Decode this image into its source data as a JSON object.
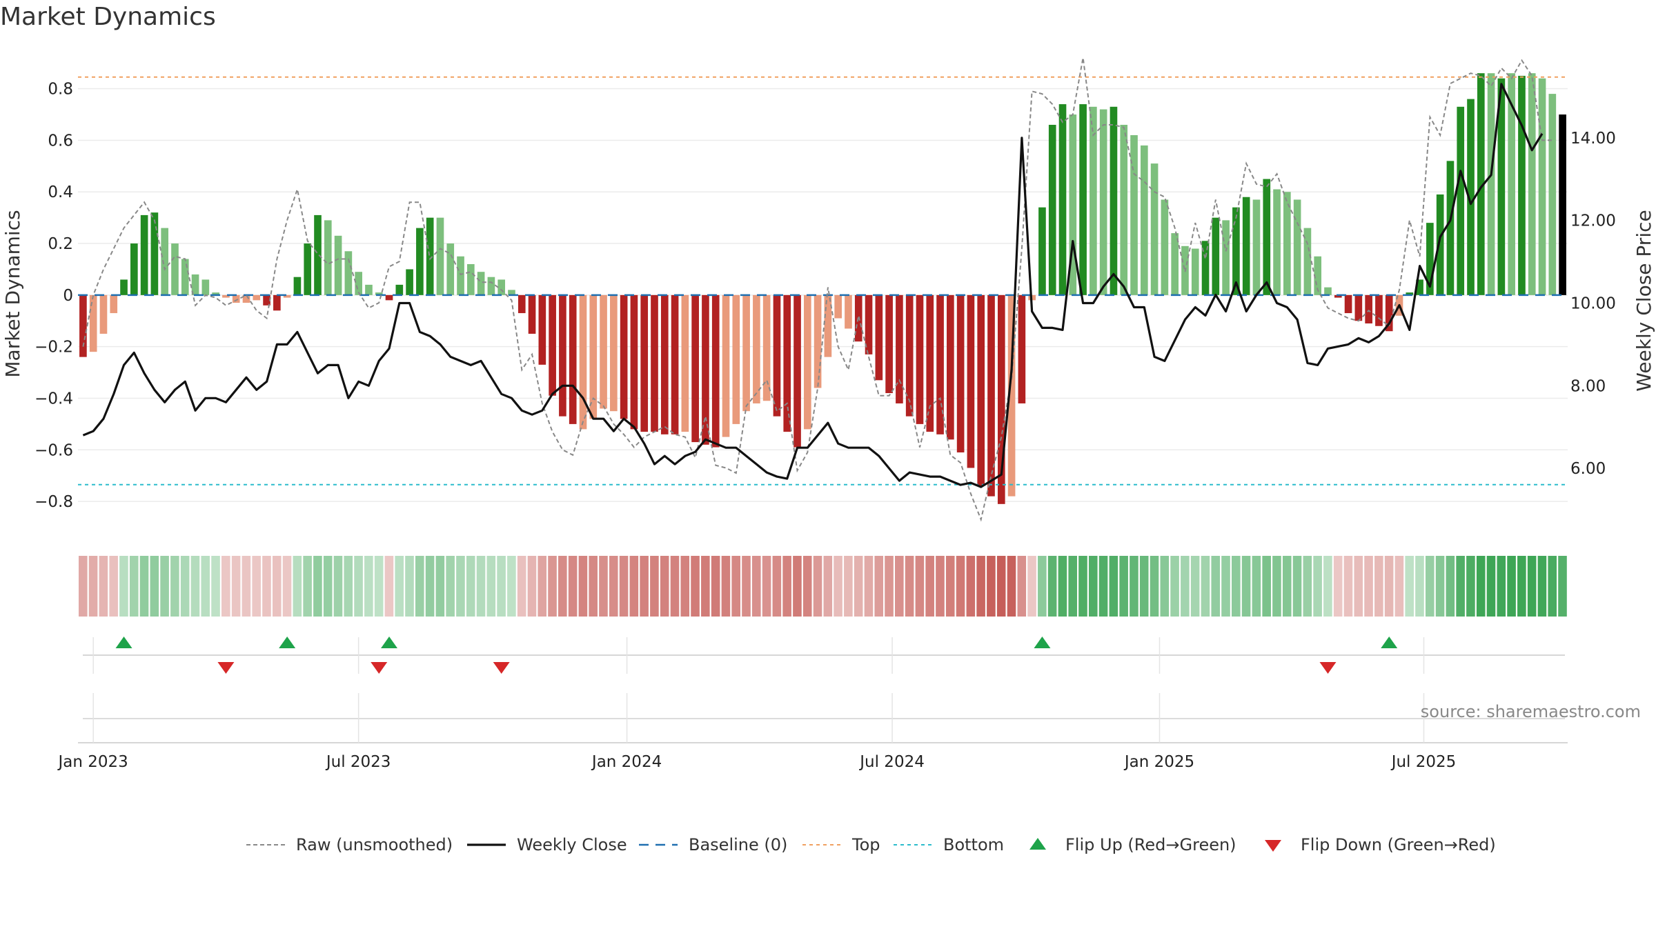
{
  "title": "Market Dynamics",
  "source": "source: sharemaestro.com",
  "chart_data": {
    "type": "bar",
    "title": "Market Dynamics",
    "ylabel": "Market Dynamics",
    "y2label": "Weekly Close Price",
    "ylim": [
      -0.92,
      0.93
    ],
    "y2lim": [
      4.45,
      16.0
    ],
    "y_ticks": [
      -0.8,
      -0.6,
      -0.4,
      -0.2,
      0,
      0.2,
      0.4,
      0.6,
      0.8
    ],
    "y_tick_labels": [
      "−0.8",
      "−0.6",
      "−0.4",
      "−0.2",
      "0",
      "0.2",
      "0.4",
      "0.6",
      "0.8"
    ],
    "y2_ticks": [
      6,
      8,
      10,
      12,
      14
    ],
    "y2_tick_labels": [
      "6.00",
      "8.00",
      "10.00",
      "12.00",
      "14.00"
    ],
    "x_ticks": [
      {
        "label": "Jan 2023",
        "week": 1.5
      },
      {
        "label": "Jul 2023",
        "week": 27.5
      },
      {
        "label": "Jan 2024",
        "week": 53.8
      },
      {
        "label": "Jul 2024",
        "week": 79.8
      },
      {
        "label": "Jan 2025",
        "week": 106.0
      },
      {
        "label": "Jul 2025",
        "week": 131.9
      }
    ],
    "top_line": 0.845,
    "bottom_line": -0.735,
    "baseline": 0,
    "grid": true,
    "legend_position": "bottom",
    "colors": {
      "strong_green": "#228b22",
      "light_green": "#7dbf7d",
      "strong_red": "#b22222",
      "light_red": "#e99a7b",
      "raw_line": "#888888",
      "close_line": "#111111",
      "baseline": "#1f6fb0",
      "top": "#f0a060",
      "bottom": "#2bbccc",
      "flip_up": "#1ea34a",
      "flip_down": "#d62728"
    },
    "series": [
      {
        "name": "Market Dynamics",
        "values": [
          -0.24,
          -0.22,
          -0.15,
          -0.07,
          0.06,
          0.2,
          0.31,
          0.32,
          0.26,
          0.2,
          0.14,
          0.08,
          0.06,
          0.01,
          -0.01,
          -0.03,
          -0.03,
          -0.02,
          -0.04,
          -0.06,
          -0.01,
          0.07,
          0.2,
          0.31,
          0.29,
          0.23,
          0.17,
          0.09,
          0.04,
          0.01,
          -0.02,
          0.04,
          0.1,
          0.26,
          0.3,
          0.3,
          0.2,
          0.15,
          0.12,
          0.09,
          0.07,
          0.06,
          0.02,
          -0.07,
          -0.15,
          -0.27,
          -0.39,
          -0.47,
          -0.5,
          -0.52,
          -0.48,
          -0.44,
          -0.45,
          -0.48,
          -0.52,
          -0.53,
          -0.53,
          -0.54,
          -0.54,
          -0.53,
          -0.57,
          -0.58,
          -0.59,
          -0.55,
          -0.5,
          -0.45,
          -0.42,
          -0.41,
          -0.47,
          -0.53,
          -0.59,
          -0.52,
          -0.36,
          -0.24,
          -0.09,
          -0.13,
          -0.18,
          -0.23,
          -0.33,
          -0.38,
          -0.42,
          -0.47,
          -0.5,
          -0.53,
          -0.54,
          -0.56,
          -0.61,
          -0.67,
          -0.74,
          -0.78,
          -0.81,
          -0.78,
          -0.42,
          -0.02,
          0.34,
          0.66,
          0.74,
          0.7,
          0.74,
          0.73,
          0.72,
          0.73,
          0.66,
          0.62,
          0.58,
          0.51,
          0.37,
          0.24,
          0.19,
          0.18,
          0.21,
          0.3,
          0.29,
          0.34,
          0.38,
          0.37,
          0.45,
          0.41,
          0.4,
          0.37,
          0.26,
          0.15,
          0.03,
          -0.01,
          -0.07,
          -0.1,
          -0.11,
          -0.12,
          -0.14,
          -0.08,
          0.01,
          0.06,
          0.28,
          0.39,
          0.52,
          0.73,
          0.76,
          0.86,
          0.86,
          0.84,
          0.86,
          0.85,
          0.86,
          0.84,
          0.78,
          0.7
        ],
        "colors": [
          "dr",
          "lr",
          "lr",
          "lr",
          "dg",
          "dg",
          "dg",
          "dg",
          "lg",
          "lg",
          "lg",
          "lg",
          "lg",
          "lg",
          "lr",
          "lr",
          "lr",
          "lr",
          "dr",
          "dr",
          "lr",
          "dg",
          "dg",
          "dg",
          "lg",
          "lg",
          "lg",
          "lg",
          "lg",
          "lg",
          "dr",
          "dg",
          "dg",
          "dg",
          "dg",
          "lg",
          "lg",
          "lg",
          "lg",
          "lg",
          "lg",
          "lg",
          "lg",
          "dr",
          "dr",
          "dr",
          "dr",
          "dr",
          "dr",
          "lr",
          "lr",
          "lr",
          "lr",
          "dr",
          "dr",
          "dr",
          "dr",
          "dr",
          "dr",
          "lr",
          "dr",
          "dr",
          "dr",
          "lr",
          "lr",
          "lr",
          "lr",
          "lr",
          "dr",
          "dr",
          "dr",
          "lr",
          "lr",
          "lr",
          "lr",
          "lr",
          "dr",
          "dr",
          "dr",
          "dr",
          "dr",
          "dr",
          "dr",
          "dr",
          "dr",
          "dr",
          "dr",
          "dr",
          "dr",
          "dr",
          "dr",
          "lr",
          "dr",
          "lr",
          "dg",
          "dg",
          "dg",
          "lg",
          "dg",
          "lg",
          "lg",
          "dg",
          "lg",
          "lg",
          "lg",
          "lg",
          "lg",
          "lg",
          "lg",
          "lg",
          "dg",
          "dg",
          "lg",
          "dg",
          "dg",
          "lg",
          "dg",
          "lg",
          "lg",
          "lg",
          "lg",
          "lg",
          "lg",
          "dr",
          "dr",
          "dr",
          "dr",
          "dr",
          "dr",
          "lr",
          "dg",
          "dg",
          "dg",
          "dg",
          "dg",
          "dg",
          "dg",
          "dg",
          "lg",
          "dg",
          "lg",
          "dg",
          "lg",
          "lg",
          "lg"
        ]
      },
      {
        "name": "Raw (unsmoothed)",
        "values": [
          -0.2,
          0.0,
          0.1,
          0.18,
          0.26,
          0.31,
          0.36,
          0.29,
          0.1,
          0.15,
          0.14,
          -0.04,
          0.0,
          -0.01,
          -0.04,
          -0.02,
          0.0,
          -0.06,
          -0.09,
          0.14,
          0.29,
          0.41,
          0.21,
          0.16,
          0.12,
          0.14,
          0.14,
          0.01,
          -0.05,
          -0.03,
          0.11,
          0.13,
          0.36,
          0.36,
          0.14,
          0.18,
          0.16,
          0.08,
          0.09,
          0.05,
          0.05,
          0.02,
          -0.02,
          -0.29,
          -0.23,
          -0.42,
          -0.53,
          -0.6,
          -0.62,
          -0.49,
          -0.4,
          -0.43,
          -0.5,
          -0.54,
          -0.59,
          -0.55,
          -0.53,
          -0.51,
          -0.54,
          -0.55,
          -0.63,
          -0.47,
          -0.66,
          -0.67,
          -0.69,
          -0.43,
          -0.38,
          -0.33,
          -0.45,
          -0.42,
          -0.68,
          -0.61,
          -0.36,
          0.03,
          -0.2,
          -0.29,
          -0.08,
          -0.24,
          -0.39,
          -0.39,
          -0.33,
          -0.41,
          -0.59,
          -0.43,
          -0.4,
          -0.62,
          -0.65,
          -0.77,
          -0.87,
          -0.7,
          -0.55,
          -0.32,
          0.18,
          0.79,
          0.78,
          0.74,
          0.67,
          0.7,
          0.92,
          0.62,
          0.66,
          0.66,
          0.65,
          0.47,
          0.44,
          0.4,
          0.38,
          0.26,
          0.09,
          0.28,
          0.14,
          0.37,
          0.17,
          0.3,
          0.51,
          0.43,
          0.42,
          0.47,
          0.36,
          0.28,
          0.2,
          0.02,
          -0.05,
          -0.07,
          -0.09,
          -0.1,
          -0.06,
          -0.09,
          -0.12,
          0.02,
          0.29,
          0.15,
          0.69,
          0.62,
          0.82,
          0.84,
          0.86,
          0.85,
          0.81,
          0.88,
          0.84,
          0.91,
          0.85,
          0.6,
          0.6
        ]
      },
      {
        "name": "Weekly Close",
        "values": [
          6.8,
          6.9,
          7.2,
          7.8,
          8.5,
          8.8,
          8.3,
          7.9,
          7.6,
          7.9,
          8.1,
          7.4,
          7.7,
          7.7,
          7.6,
          7.9,
          8.2,
          7.9,
          8.1,
          9.0,
          9.0,
          9.3,
          8.8,
          8.3,
          8.5,
          8.5,
          7.7,
          8.1,
          8.0,
          8.6,
          8.9,
          10.0,
          10.0,
          9.3,
          9.2,
          9.0,
          8.7,
          8.6,
          8.5,
          8.6,
          8.2,
          7.8,
          7.7,
          7.4,
          7.3,
          7.4,
          7.8,
          8.0,
          8.0,
          7.7,
          7.2,
          7.2,
          6.9,
          7.2,
          7.0,
          6.6,
          6.1,
          6.3,
          6.1,
          6.3,
          6.4,
          6.7,
          6.6,
          6.5,
          6.5,
          6.3,
          6.1,
          5.9,
          5.8,
          5.75,
          6.5,
          6.5,
          6.8,
          7.1,
          6.6,
          6.5,
          6.5,
          6.5,
          6.3,
          6.0,
          5.7,
          5.9,
          5.85,
          5.8,
          5.8,
          5.7,
          5.6,
          5.65,
          5.55,
          5.7,
          5.85,
          8.4,
          14.0,
          9.8,
          9.4,
          9.4,
          9.35,
          11.5,
          10.0,
          10.0,
          10.4,
          10.7,
          10.4,
          9.9,
          9.9,
          8.7,
          8.6,
          9.1,
          9.6,
          9.9,
          9.7,
          10.2,
          9.8,
          10.5,
          9.8,
          10.2,
          10.5,
          10.0,
          9.9,
          9.6,
          8.55,
          8.5,
          8.9,
          8.95,
          9.0,
          9.15,
          9.05,
          9.2,
          9.5,
          9.95,
          9.35,
          10.9,
          10.4,
          11.6,
          12.0,
          13.2,
          12.4,
          12.8,
          13.1,
          15.3,
          14.8,
          14.3,
          13.7,
          14.1
        ]
      }
    ],
    "flips": [
      {
        "week": 4,
        "type": "up"
      },
      {
        "week": 14,
        "type": "down"
      },
      {
        "week": 20,
        "type": "up"
      },
      {
        "week": 29,
        "type": "down"
      },
      {
        "week": 30,
        "type": "up"
      },
      {
        "week": 41,
        "type": "down"
      },
      {
        "week": 94,
        "type": "up"
      },
      {
        "week": 122,
        "type": "down"
      },
      {
        "week": 128,
        "type": "up"
      }
    ],
    "legend": [
      {
        "key": "raw",
        "label": "Raw (unsmoothed)"
      },
      {
        "key": "close",
        "label": "Weekly Close"
      },
      {
        "key": "baseline",
        "label": "Baseline (0)"
      },
      {
        "key": "top",
        "label": "Top"
      },
      {
        "key": "bottom",
        "label": "Bottom"
      },
      {
        "key": "flip_up",
        "label": "Flip Up (Red→Green)"
      },
      {
        "key": "flip_down",
        "label": "Flip Down (Green→Red)"
      }
    ]
  }
}
